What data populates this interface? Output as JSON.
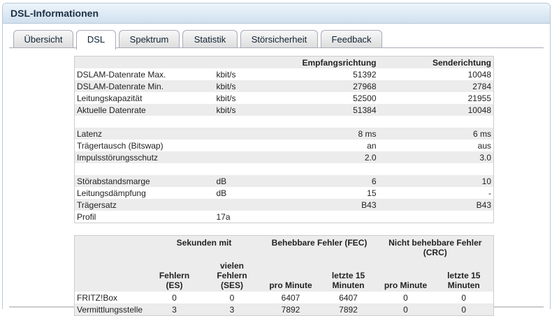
{
  "header": {
    "title": "DSL-Informationen"
  },
  "tabs": [
    "Übersicht",
    "DSL",
    "Spektrum",
    "Statistik",
    "Störsicherheit",
    "Feedback"
  ],
  "active_tab": 1,
  "table": {
    "columns": [
      "Empfangsrichtung",
      "Senderichtung"
    ],
    "groups": [
      [
        [
          "DSLAM-Datenrate Max.",
          "kbit/s",
          "51392",
          "10048"
        ],
        [
          "DSLAM-Datenrate Min.",
          "kbit/s",
          "27968",
          "2784"
        ],
        [
          "Leitungskapazität",
          "kbit/s",
          "52500",
          "21955"
        ],
        [
          "Aktuelle Datenrate",
          "kbit/s",
          "51384",
          "10048"
        ]
      ],
      [
        [
          "Latenz",
          null,
          "8 ms",
          "6 ms"
        ],
        [
          "Trägertausch (Bitswap)",
          null,
          "an",
          "aus"
        ],
        [
          "Impulsstörungsschutz",
          null,
          "2.0",
          "3.0"
        ]
      ],
      [
        [
          "Störabstandsmarge",
          "dB",
          "6",
          "10"
        ],
        [
          "Leitungsdämpfung",
          "dB",
          "15",
          "-"
        ],
        [
          "Trägersatz",
          null,
          "B43",
          "B43"
        ],
        [
          "Profil",
          "17a",
          null,
          null
        ]
      ]
    ]
  },
  "errors": {
    "groups": [
      "Sekunden mit",
      "Behebbare Fehler (FEC)",
      "Nicht behebbare Fehler (CRC)"
    ],
    "columns": [
      "Fehlern (ES)",
      "vielen Fehlern (SES)",
      "pro Minute",
      "letzte 15 Minuten",
      "pro Minute",
      "letzte 15 Minuten"
    ],
    "rows": [
      [
        "FRITZ!Box",
        "0",
        "0",
        "6407",
        "6407",
        "0",
        "0"
      ],
      [
        "Vermittlungsstelle",
        "3",
        "3",
        "7892",
        "7892",
        "0",
        "0"
      ]
    ]
  }
}
